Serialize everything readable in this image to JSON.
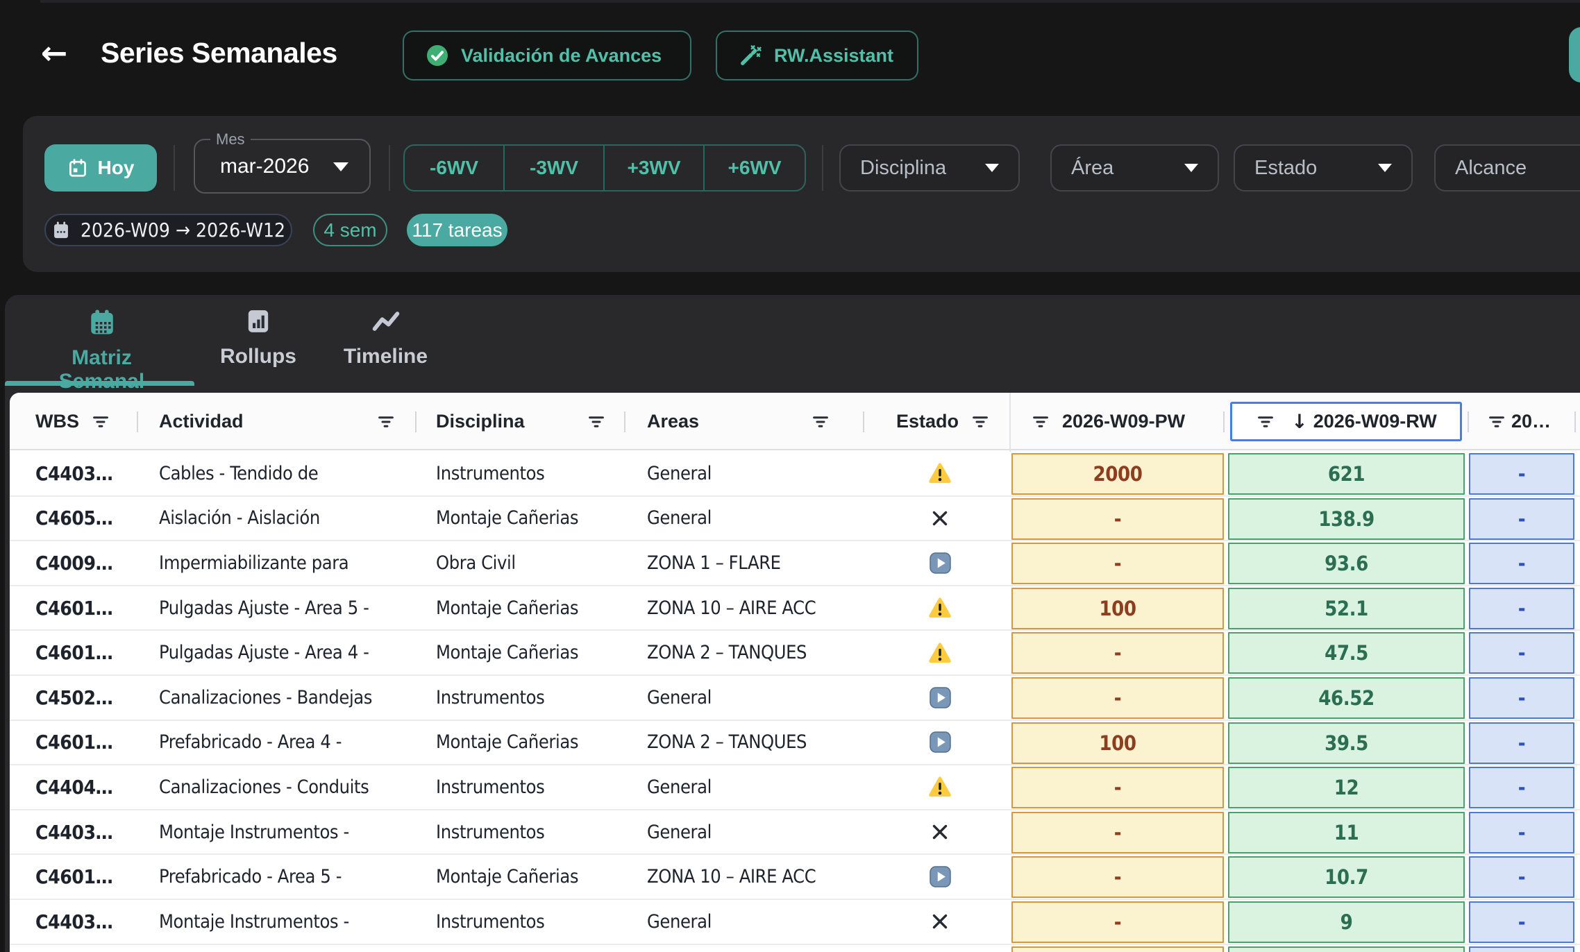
{
  "header": {
    "back_icon": "←",
    "title": "Series Semanales",
    "validation_button": "Validación de Avances",
    "assistant_button": "RW.Assistant"
  },
  "filters": {
    "today_button": "Hoy",
    "month_label": "Mes",
    "month_value": "mar-2026",
    "wv_buttons": [
      "-6WV",
      "-3WV",
      "+3WV",
      "+6WV"
    ],
    "dropdowns": [
      "Disciplina",
      "Área",
      "Estado",
      "Alcance"
    ],
    "range_chip": "2026-W09 → 2026-W12",
    "weeks_chip": "4 sem",
    "tasks_chip": "117 tareas"
  },
  "tabs": [
    {
      "label": "Matriz Semanal",
      "icon": "calendar-icon",
      "active": true
    },
    {
      "label": "Rollups",
      "icon": "bar-chart-icon",
      "active": false
    },
    {
      "label": "Timeline",
      "icon": "trend-line-icon",
      "active": false
    }
  ],
  "table": {
    "columns": [
      "WBS",
      "Actividad",
      "Disciplina",
      "Areas",
      "Estado",
      "2026-W09-PW",
      "2026-W09-RW",
      "20…"
    ],
    "sorted_column": "2026-W09-RW",
    "sort_direction": "↓",
    "rows": [
      {
        "wbs": "C4403…",
        "actividad": "Cables - Tendido de",
        "disciplina": "Instrumentos",
        "areas": "General",
        "estado": "warning",
        "pw": "2000",
        "rw": "621",
        "extra": "-"
      },
      {
        "wbs": "C4605…",
        "actividad": "Aislación - Aislación",
        "disciplina": "Montaje Cañerias",
        "areas": "General",
        "estado": "cancelled",
        "pw": "-",
        "rw": "138.9",
        "extra": "-"
      },
      {
        "wbs": "C4009…",
        "actividad": "Impermiabilizante para",
        "disciplina": "Obra Civil",
        "areas": "ZONA 1 – FLARE",
        "estado": "play",
        "pw": "-",
        "rw": "93.6",
        "extra": "-"
      },
      {
        "wbs": "C4601…",
        "actividad": "Pulgadas Ajuste - Area 5 -",
        "disciplina": "Montaje Cañerias",
        "areas": "ZONA 10 – AIRE ACC",
        "estado": "warning",
        "pw": "100",
        "rw": "52.1",
        "extra": "-"
      },
      {
        "wbs": "C4601…",
        "actividad": "Pulgadas Ajuste - Area 4 -",
        "disciplina": "Montaje Cañerias",
        "areas": "ZONA 2 – TANQUES",
        "estado": "warning",
        "pw": "-",
        "rw": "47.5",
        "extra": "-"
      },
      {
        "wbs": "C4502…",
        "actividad": "Canalizaciones - Bandejas",
        "disciplina": "Instrumentos",
        "areas": "General",
        "estado": "play",
        "pw": "-",
        "rw": "46.52",
        "extra": "-"
      },
      {
        "wbs": "C4601…",
        "actividad": "Prefabricado - Area 4 -",
        "disciplina": "Montaje Cañerias",
        "areas": "ZONA 2 – TANQUES",
        "estado": "play",
        "pw": "100",
        "rw": "39.5",
        "extra": "-"
      },
      {
        "wbs": "C4404…",
        "actividad": "Canalizaciones - Conduits",
        "disciplina": "Instrumentos",
        "areas": "General",
        "estado": "warning",
        "pw": "-",
        "rw": "12",
        "extra": "-"
      },
      {
        "wbs": "C4403…",
        "actividad": "Montaje Instrumentos -",
        "disciplina": "Instrumentos",
        "areas": "General",
        "estado": "cancelled",
        "pw": "-",
        "rw": "11",
        "extra": "-"
      },
      {
        "wbs": "C4601…",
        "actividad": "Prefabricado - Area 5 -",
        "disciplina": "Montaje Cañerias",
        "areas": "ZONA 10 – AIRE ACC",
        "estado": "play",
        "pw": "-",
        "rw": "10.7",
        "extra": "-"
      },
      {
        "wbs": "C4403…",
        "actividad": "Montaje Instrumentos -",
        "disciplina": "Instrumentos",
        "areas": "General",
        "estado": "cancelled",
        "pw": "-",
        "rw": "9",
        "extra": "-"
      },
      {
        "wbs": "",
        "actividad": "",
        "disciplina": "",
        "areas": "",
        "estado": "play",
        "pw": "",
        "rw": "",
        "extra": ""
      }
    ]
  },
  "colors": {
    "page_bg": "#161617",
    "panel_bg": "#28282B",
    "accent": "#4AA9A1",
    "teal_text": "#52C0A8",
    "pw_bg": "#FBF2D0",
    "pw_border": "#D9973B",
    "pw_text": "#8E3D1F",
    "rw_bg": "#DAF3E1",
    "rw_border": "#49A269",
    "rw_text": "#2B6F50",
    "extra_bg": "#D8E3F8",
    "extra_border": "#4C79D6",
    "extra_text": "#2D52C0",
    "sort_outline": "#3F80F0",
    "warning_yellow": "#FDCB3F",
    "play_blue": "#7B97B8",
    "check_green": "#3EAE72"
  }
}
